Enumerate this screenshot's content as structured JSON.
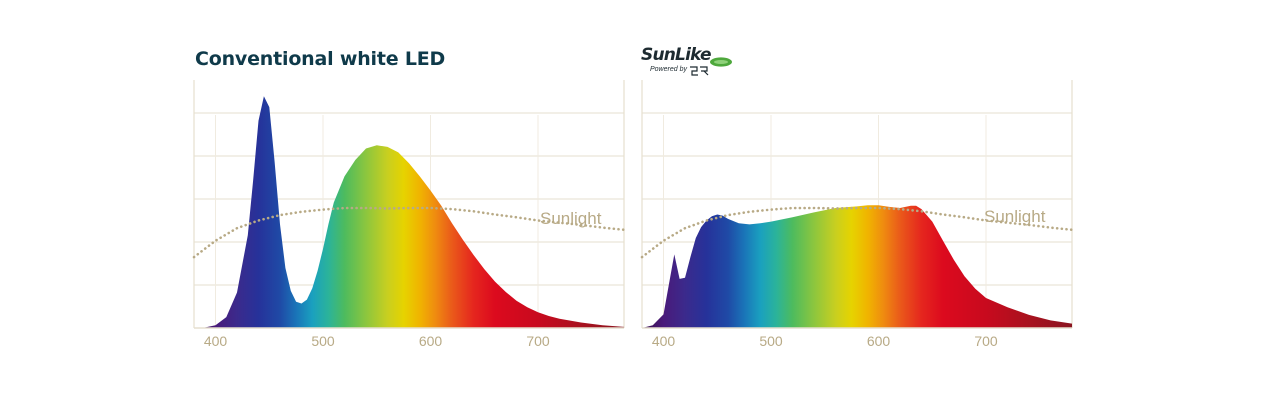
{
  "colors": {
    "title": "#0f3a4a",
    "grid": "#e6dfcf",
    "axis_text": "#b8aa86",
    "sunlight_curve": "#b8aa86",
    "logo_green": "#4ea83c"
  },
  "logo": {
    "brand": "SunLike",
    "powered": "Powered by",
    "maker_mark": "SR",
    "badge_icon": "green-oval-badge-icon"
  },
  "chart_data": [
    {
      "type": "area",
      "title": "Conventional white LED",
      "x_unit": "wavelength (nm)",
      "xlim": [
        380,
        780
      ],
      "ylim": [
        0,
        4.4
      ],
      "xticks": [
        400,
        500,
        600,
        700
      ],
      "grid": true,
      "spectrum_fill": "rainbow by wavelength",
      "series": [
        {
          "name": "",
          "x": [
            380,
            390,
            400,
            410,
            420,
            430,
            435,
            440,
            445,
            450,
            455,
            460,
            465,
            470,
            475,
            480,
            485,
            490,
            495,
            500,
            505,
            510,
            520,
            530,
            540,
            550,
            560,
            570,
            580,
            590,
            600,
            610,
            620,
            630,
            640,
            650,
            660,
            670,
            680,
            690,
            700,
            710,
            720,
            740,
            760,
            780
          ],
          "y": [
            0.0,
            0.01,
            0.05,
            0.2,
            0.65,
            1.7,
            2.7,
            3.8,
            4.25,
            4.05,
            3.05,
            1.9,
            1.1,
            0.68,
            0.48,
            0.45,
            0.52,
            0.73,
            1.05,
            1.45,
            1.9,
            2.3,
            2.78,
            3.08,
            3.29,
            3.35,
            3.32,
            3.22,
            3.02,
            2.78,
            2.52,
            2.24,
            1.92,
            1.62,
            1.34,
            1.08,
            0.85,
            0.66,
            0.5,
            0.38,
            0.29,
            0.22,
            0.17,
            0.1,
            0.05,
            0.02
          ]
        }
      ],
      "annotations": [
        {
          "label": "Sunlight",
          "style": "dotted",
          "x": [
            380,
            400,
            420,
            440,
            460,
            480,
            500,
            520,
            540,
            560,
            580,
            600,
            620,
            640,
            660,
            680,
            700,
            720,
            740,
            760,
            780
          ],
          "y": [
            1.3,
            1.6,
            1.83,
            1.97,
            2.07,
            2.13,
            2.17,
            2.2,
            2.2,
            2.19,
            2.2,
            2.2,
            2.18,
            2.14,
            2.08,
            2.03,
            1.97,
            1.93,
            1.89,
            1.84,
            1.8
          ]
        }
      ]
    },
    {
      "type": "area",
      "title": "",
      "x_unit": "wavelength (nm)",
      "xlim": [
        380,
        780
      ],
      "ylim": [
        0,
        4.4
      ],
      "xticks": [
        400,
        500,
        600,
        700
      ],
      "grid": true,
      "spectrum_fill": "rainbow by wavelength",
      "series": [
        {
          "name": "",
          "x": [
            380,
            390,
            400,
            405,
            410,
            415,
            420,
            425,
            430,
            435,
            440,
            445,
            450,
            455,
            460,
            470,
            480,
            490,
            500,
            520,
            540,
            560,
            580,
            590,
            600,
            610,
            620,
            630,
            635,
            640,
            650,
            660,
            670,
            680,
            690,
            700,
            720,
            740,
            760,
            780
          ],
          "y": [
            0.0,
            0.05,
            0.25,
            0.8,
            1.35,
            0.9,
            0.92,
            1.3,
            1.65,
            1.85,
            1.97,
            2.05,
            2.08,
            2.06,
            2.0,
            1.92,
            1.9,
            1.92,
            1.95,
            2.03,
            2.12,
            2.2,
            2.23,
            2.25,
            2.25,
            2.22,
            2.2,
            2.24,
            2.24,
            2.18,
            1.95,
            1.6,
            1.25,
            0.95,
            0.72,
            0.55,
            0.38,
            0.24,
            0.14,
            0.08
          ]
        }
      ],
      "annotations": [
        {
          "label": "Sunlight",
          "style": "dotted",
          "x": [
            380,
            400,
            420,
            440,
            460,
            480,
            500,
            520,
            540,
            560,
            580,
            600,
            620,
            640,
            660,
            680,
            700,
            720,
            740,
            760,
            780
          ],
          "y": [
            1.3,
            1.6,
            1.83,
            1.97,
            2.07,
            2.13,
            2.17,
            2.2,
            2.2,
            2.19,
            2.2,
            2.2,
            2.18,
            2.14,
            2.08,
            2.03,
            1.97,
            1.93,
            1.89,
            1.84,
            1.8
          ]
        }
      ]
    }
  ]
}
